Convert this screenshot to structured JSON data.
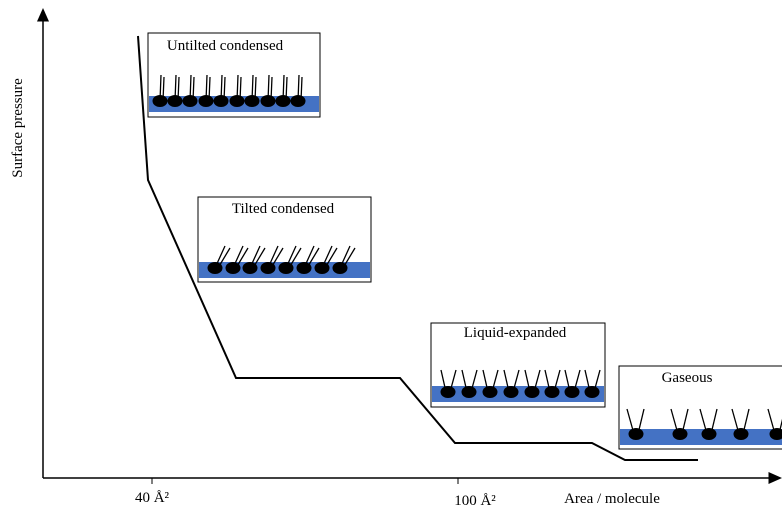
{
  "axes": {
    "y_label": "Surface pressure",
    "x_label": "Area / molecule",
    "x_ticks": [
      "40 Å²",
      "100 Å²"
    ]
  },
  "phases": [
    {
      "label": "Untilted condensed"
    },
    {
      "label": "Tilted condensed"
    },
    {
      "label": "Liquid-expanded"
    },
    {
      "label": "Gaseous"
    }
  ]
}
